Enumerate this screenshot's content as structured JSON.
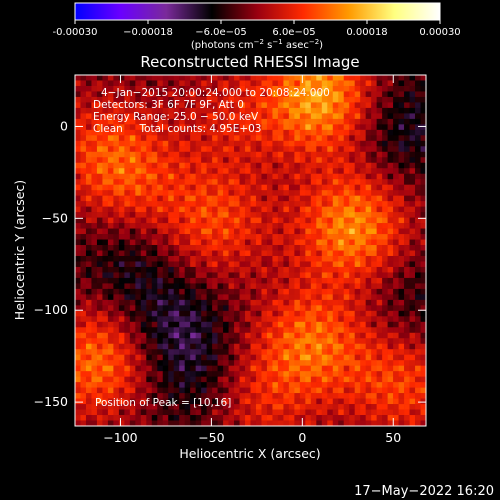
{
  "chart_data": {
    "type": "heatmap",
    "title": "Reconstructed RHESSI Image",
    "xlabel": "Heliocentric X (arcsec)",
    "ylabel": "Heliocentric Y (arcsec)",
    "xlim": [
      -125,
      68
    ],
    "ylim": [
      -163,
      28
    ],
    "xticks": [
      -100,
      -50,
      0,
      50
    ],
    "yticks": [
      0,
      -50,
      -100,
      -150
    ],
    "xtick_labels": [
      "−100",
      "−50",
      "0",
      "50"
    ],
    "ytick_labels": [
      "0",
      "−50",
      "−100",
      "−150"
    ],
    "colorbar": {
      "range": [
        -0.0003,
        0.0003
      ],
      "ticks": [
        -0.0003,
        -0.00018,
        -6e-05,
        6e-05,
        0.00018,
        0.0003
      ],
      "tick_labels": [
        "-0.00030",
        "−0.00018",
        "−6.0e−05",
        "6.0e−05",
        "0.00018",
        "0.00030"
      ],
      "units_prefix": "(photons cm",
      "units_exp1": "−2",
      "units_mid1": " s",
      "units_exp2": "−1",
      "units_mid2": " asec",
      "units_exp3": "−2",
      "units_suffix": ")",
      "colors": [
        "#0000ff",
        "#6a00ff",
        "#7a2a9a",
        "#000000",
        "#9a0010",
        "#ff2a00",
        "#ff9a00",
        "#ffff80",
        "#ffffff"
      ]
    },
    "annotations": [
      "4−Jan−2015 20:00:24.000 to 20:08:24.000",
      "Detectors: 3F 6F 7F 9F, Att 0",
      "Energy Range: 25.0 − 50.0 keV",
      "Clean     Total counts: 4.95E+03"
    ],
    "peak_label": "Position of Peak = [10,16]",
    "peak_position": [
      10,
      16
    ],
    "bright_sources": [
      {
        "x": 10,
        "y": 16,
        "level": 1.0
      },
      {
        "x": 28,
        "y": -55,
        "level": 0.9
      },
      {
        "x": 5,
        "y": -118,
        "level": 0.75
      },
      {
        "x": -112,
        "y": -128,
        "level": 0.8
      },
      {
        "x": -48,
        "y": -52,
        "level": 0.6
      },
      {
        "x": 55,
        "y": -140,
        "level": 0.6
      },
      {
        "x": -95,
        "y": -30,
        "level": 0.45
      },
      {
        "x": -110,
        "y": -10,
        "level": 0.45
      },
      {
        "x": -25,
        "y": -150,
        "level": 0.4
      },
      {
        "x": -40,
        "y": 5,
        "level": 0.35
      }
    ],
    "negative_regions": [
      {
        "x": -70,
        "y": -110,
        "level": 0.8
      },
      {
        "x": 55,
        "y": 0,
        "level": 0.7
      },
      {
        "x": -95,
        "y": -75,
        "level": 0.55
      },
      {
        "x": 60,
        "y": -95,
        "level": 0.45
      },
      {
        "x": -60,
        "y": -140,
        "level": 0.5
      }
    ]
  },
  "footer": {
    "timestamp": "17−May−2022 16:20"
  }
}
